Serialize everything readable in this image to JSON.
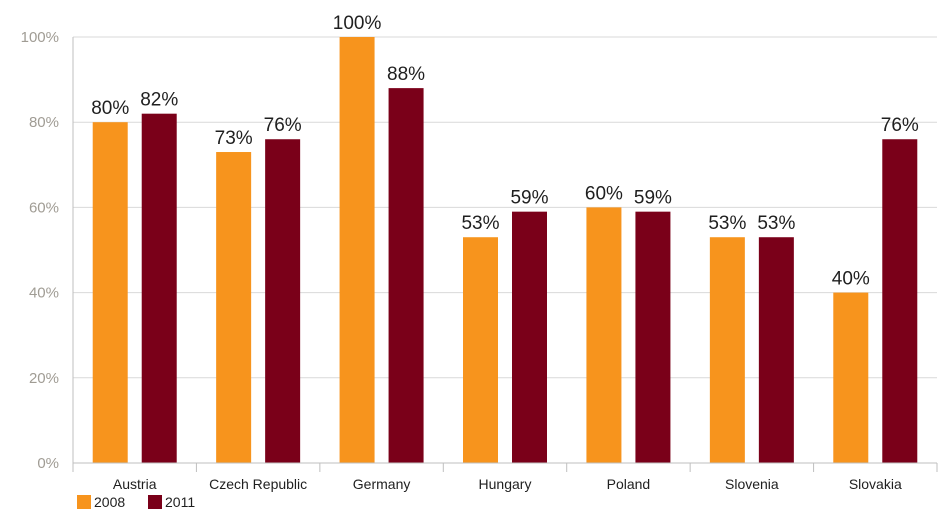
{
  "chart_data": {
    "type": "bar",
    "title": "",
    "xlabel": "",
    "ylabel": "",
    "categories": [
      "Austria",
      "Czech Republic",
      "Germany",
      "Hungary",
      "Poland",
      "Slovenia",
      "Slovakia"
    ],
    "series": [
      {
        "name": "2008",
        "color": "#f7941d",
        "values": [
          80,
          73,
          100,
          53,
          60,
          53,
          40
        ]
      },
      {
        "name": "2011",
        "color": "#7a0019",
        "values": [
          82,
          76,
          88,
          59,
          59,
          53,
          76
        ]
      }
    ],
    "ylim": [
      0,
      100
    ],
    "yticks": [
      "0%",
      "20%",
      "40%",
      "60%",
      "80%",
      "100%"
    ],
    "ytick_values": [
      0,
      20,
      40,
      60,
      80,
      100
    ],
    "value_suffix": "%",
    "grid": true,
    "legend_position": "bottom-left"
  }
}
